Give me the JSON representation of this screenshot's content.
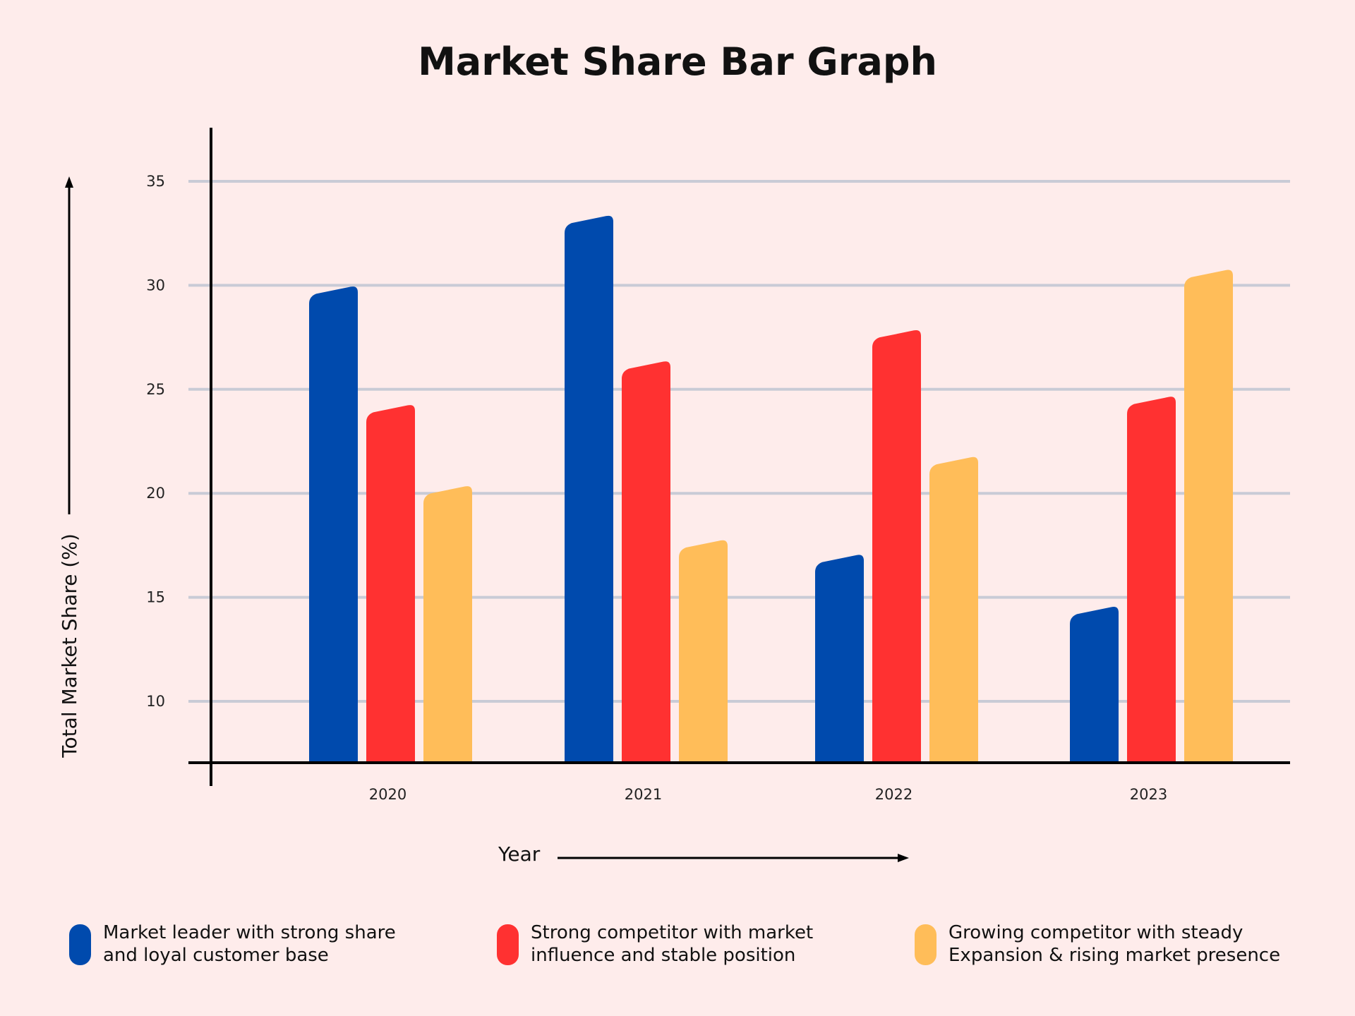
{
  "chart_data": {
    "type": "bar",
    "title": "Market Share Bar Graph",
    "xlabel": "Year",
    "ylabel": "Total Market Share (%)",
    "categories": [
      "2020",
      "2021",
      "2022",
      "2023"
    ],
    "ylim": [
      7,
      37
    ],
    "yticks": [
      10,
      15,
      20,
      25,
      30,
      35
    ],
    "grid": true,
    "legend_placement": "bottom",
    "series": [
      {
        "name": "Market leader with strong share and loyal customer base",
        "legend_lines": [
          "Market leader with strong share",
          "and loyal customer base"
        ],
        "color": "#004aad",
        "values": [
          30.0,
          33.4,
          17.1,
          14.6
        ]
      },
      {
        "name": "Strong competitor with market influence and stable position",
        "legend_lines": [
          "Strong competitor with market",
          "influence and stable position"
        ],
        "color": "#ff3131",
        "values": [
          24.3,
          26.4,
          27.9,
          24.7
        ]
      },
      {
        "name": "Growing competitor with steady Expansion & rising market presence",
        "legend_lines": [
          "Growing competitor with steady",
          "Expansion & rising market presence"
        ],
        "color": "#ffbd59",
        "values": [
          20.4,
          17.8,
          21.8,
          30.8
        ]
      }
    ]
  },
  "colors": {
    "background": "#feeceb",
    "grid": "#c9cbd6",
    "axis": "#000000"
  }
}
